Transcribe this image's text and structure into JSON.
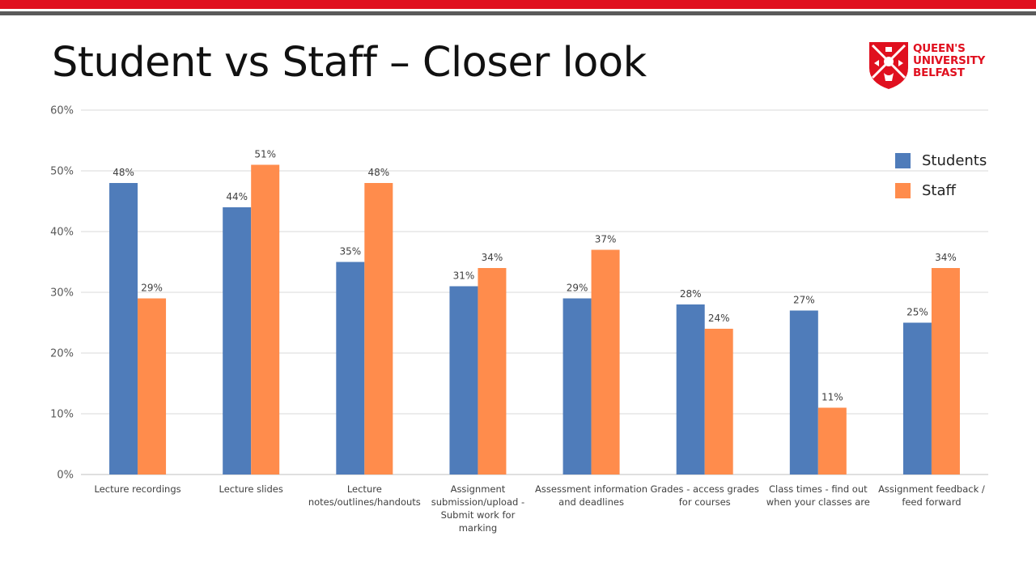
{
  "slide": {
    "title": "Student vs Staff – Closer look"
  },
  "logo": {
    "name": "queens-university-belfast-logo",
    "line1": "QUEEN'S",
    "line2": "UNIVERSITY",
    "line3": "BELFAST",
    "color": "#e0101f"
  },
  "chart_data": {
    "type": "bar",
    "title": "",
    "xlabel": "",
    "ylabel": "",
    "ylim": [
      0,
      60
    ],
    "yticks": [
      "0%",
      "10%",
      "20%",
      "30%",
      "40%",
      "50%",
      "60%"
    ],
    "grid": true,
    "legend_position": "top-right",
    "categories": [
      "Lecture recordings",
      "Lecture slides",
      "Lecture notes/outlines/handouts",
      "Assignment submission/upload - Submit work for marking",
      "Assessment information and deadlines",
      "Grades - access grades for courses",
      "Class times - find out when your classes are",
      "Assignment feedback / feed forward"
    ],
    "series": [
      {
        "name": "Students",
        "color": "#4f7cba",
        "values": [
          48,
          44,
          35,
          31,
          29,
          28,
          27,
          25
        ]
      },
      {
        "name": "Staff",
        "color": "#ff8c4c",
        "values": [
          29,
          51,
          48,
          34,
          37,
          24,
          11,
          34
        ]
      }
    ]
  }
}
